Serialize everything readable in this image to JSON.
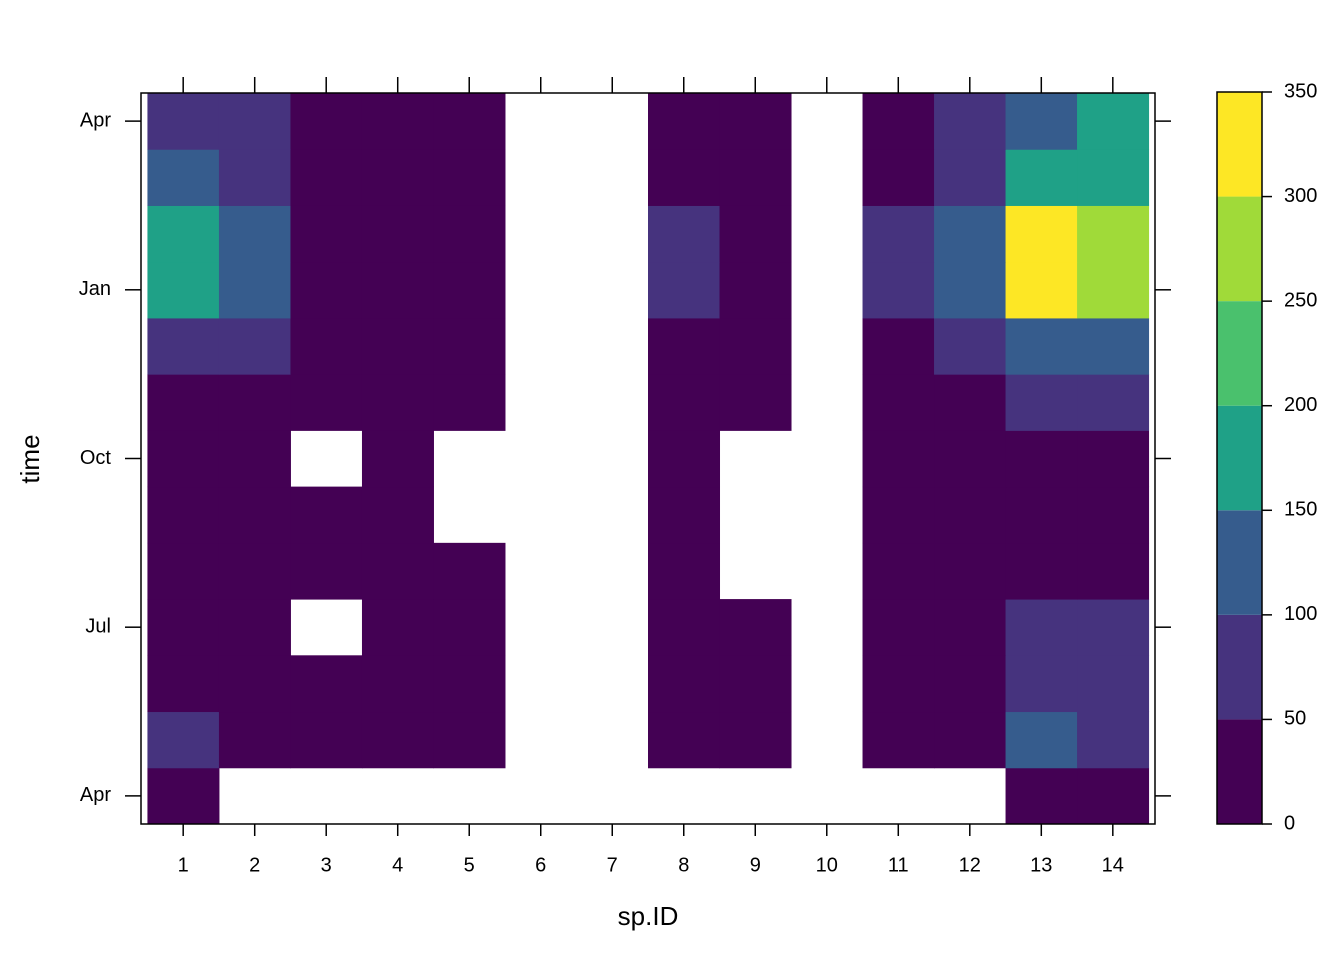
{
  "chart_data": {
    "type": "heatmap",
    "x_label": "sp.ID",
    "y_label": "time",
    "x": [
      1,
      2,
      3,
      4,
      5,
      6,
      7,
      8,
      9,
      10,
      11,
      12,
      13,
      14
    ],
    "xlim": [
      0.41,
      14.59
    ],
    "xticks": [
      1,
      2,
      3,
      4,
      5,
      6,
      7,
      8,
      9,
      10,
      11,
      12,
      13,
      14
    ],
    "y_categories": [
      "Apr",
      null,
      null,
      "Jul",
      null,
      null,
      "Oct",
      null,
      null,
      "Jan",
      null,
      null,
      "Apr"
    ],
    "z": [
      [
        25,
        null,
        null,
        null,
        null,
        null,
        null,
        null,
        null,
        null,
        null,
        null,
        25,
        25
      ],
      [
        75,
        25,
        25,
        25,
        25,
        null,
        null,
        25,
        25,
        null,
        25,
        25,
        125,
        75
      ],
      [
        25,
        25,
        25,
        25,
        25,
        null,
        null,
        25,
        25,
        null,
        25,
        25,
        75,
        75
      ],
      [
        25,
        25,
        null,
        25,
        25,
        null,
        null,
        25,
        25,
        null,
        25,
        25,
        75,
        75
      ],
      [
        25,
        25,
        25,
        25,
        25,
        null,
        null,
        25,
        null,
        null,
        25,
        25,
        25,
        25
      ],
      [
        25,
        25,
        25,
        25,
        null,
        null,
        null,
        25,
        null,
        null,
        25,
        25,
        25,
        25
      ],
      [
        25,
        25,
        null,
        25,
        null,
        null,
        null,
        25,
        null,
        null,
        25,
        25,
        25,
        25
      ],
      [
        25,
        25,
        25,
        25,
        25,
        null,
        null,
        25,
        25,
        null,
        25,
        25,
        75,
        75
      ],
      [
        75,
        75,
        25,
        25,
        25,
        null,
        null,
        25,
        25,
        null,
        25,
        75,
        125,
        125
      ],
      [
        175,
        125,
        25,
        25,
        25,
        null,
        null,
        75,
        25,
        null,
        75,
        125,
        325,
        275
      ],
      [
        175,
        125,
        25,
        25,
        25,
        null,
        null,
        75,
        25,
        null,
        75,
        125,
        325,
        275
      ],
      [
        125,
        75,
        25,
        25,
        25,
        null,
        null,
        25,
        25,
        null,
        25,
        75,
        175,
        175
      ],
      [
        75,
        75,
        25,
        25,
        25,
        null,
        null,
        25,
        25,
        null,
        25,
        75,
        125,
        175
      ]
    ],
    "zlim": [
      0,
      350
    ],
    "color_breaks": [
      0,
      50,
      100,
      150,
      200,
      250,
      300,
      350
    ],
    "colors": [
      "#440154",
      "#46337e",
      "#365c8d",
      "#1fa187",
      "#4ac16d",
      "#a0da39",
      "#fde725"
    ],
    "colorbar_ticks": [
      0,
      50,
      100,
      150,
      200,
      250,
      300,
      350
    ]
  }
}
